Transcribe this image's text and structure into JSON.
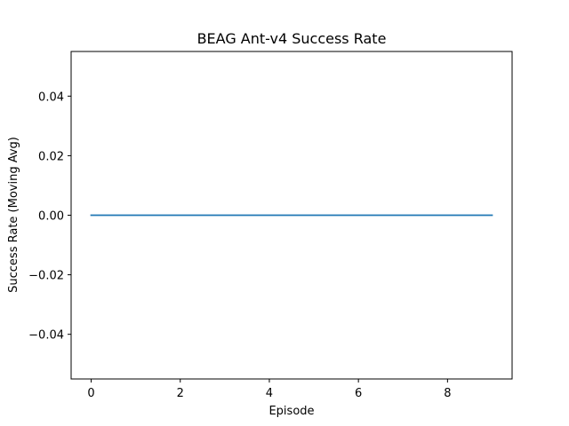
{
  "chart_data": {
    "type": "line",
    "title": "BEAG Ant-v4 Success Rate",
    "xlabel": "Episode",
    "ylabel": "Success Rate (Moving Avg)",
    "xlim": [
      -0.45,
      9.45
    ],
    "ylim": [
      -0.055,
      0.055
    ],
    "xticks": [
      0,
      2,
      4,
      6,
      8
    ],
    "xtick_labels": [
      "0",
      "2",
      "4",
      "6",
      "8"
    ],
    "yticks": [
      -0.04,
      -0.02,
      0.0,
      0.02,
      0.04
    ],
    "ytick_labels": [
      "−0.04",
      "−0.02",
      "0.00",
      "0.02",
      "0.04"
    ],
    "grid": false,
    "series": [
      {
        "color": "#1f77b4",
        "x": [
          0,
          1,
          2,
          3,
          4,
          5,
          6,
          7,
          8,
          9
        ],
        "y": [
          0,
          0,
          0,
          0,
          0,
          0,
          0,
          0,
          0,
          0
        ]
      }
    ]
  }
}
